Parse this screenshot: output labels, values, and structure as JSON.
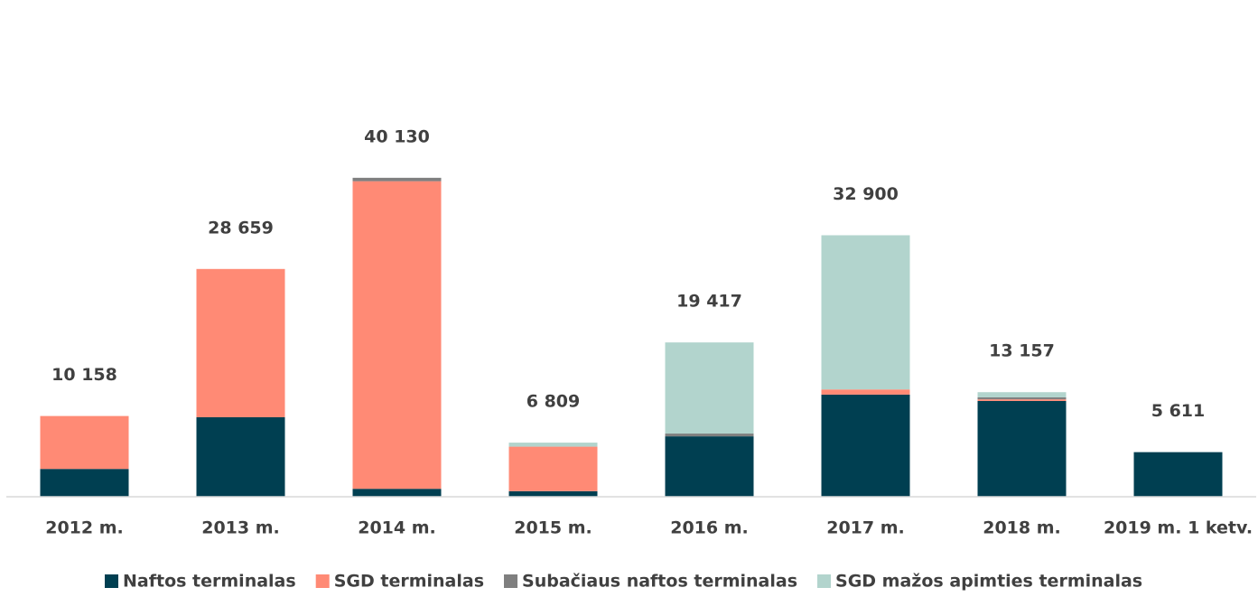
{
  "chart_data": {
    "type": "stacked_bar",
    "categories": [
      "2012 m.",
      "2013 m.",
      "2014 m.",
      "2015 m.",
      "2016 m.",
      "2017 m.",
      "2018 m.",
      "2019 m. 1 ketv."
    ],
    "series": [
      {
        "name": "Naftos terminalas",
        "color": "#003f51",
        "values": [
          3500,
          10000,
          1000,
          700,
          7600,
          12850,
          12050,
          5611
        ]
      },
      {
        "name": "SGD terminalas",
        "color": "#ff8a75",
        "values": [
          6658,
          18659,
          38700,
          5600,
          0,
          650,
          200,
          0
        ]
      },
      {
        "name": "Subačiaus naftos terminalas",
        "color": "#7f7f7f",
        "values": [
          0,
          0,
          430,
          0,
          350,
          0,
          250,
          0
        ]
      },
      {
        "name": "SGD mažos apimties terminalas",
        "color": "#b2d4cd",
        "values": [
          0,
          0,
          0,
          509,
          11467,
          19400,
          657,
          0
        ]
      }
    ],
    "totals": {
      "values": [
        10158,
        28659,
        40130,
        6809,
        19417,
        32900,
        13157,
        5611
      ],
      "value_labels": [
        "10 158",
        "28 659",
        "40 130",
        "6 809",
        "19 417",
        "32 900",
        "13 157",
        "5 611"
      ]
    },
    "ylim": [
      0,
      45000
    ],
    "legend": "bottom"
  }
}
